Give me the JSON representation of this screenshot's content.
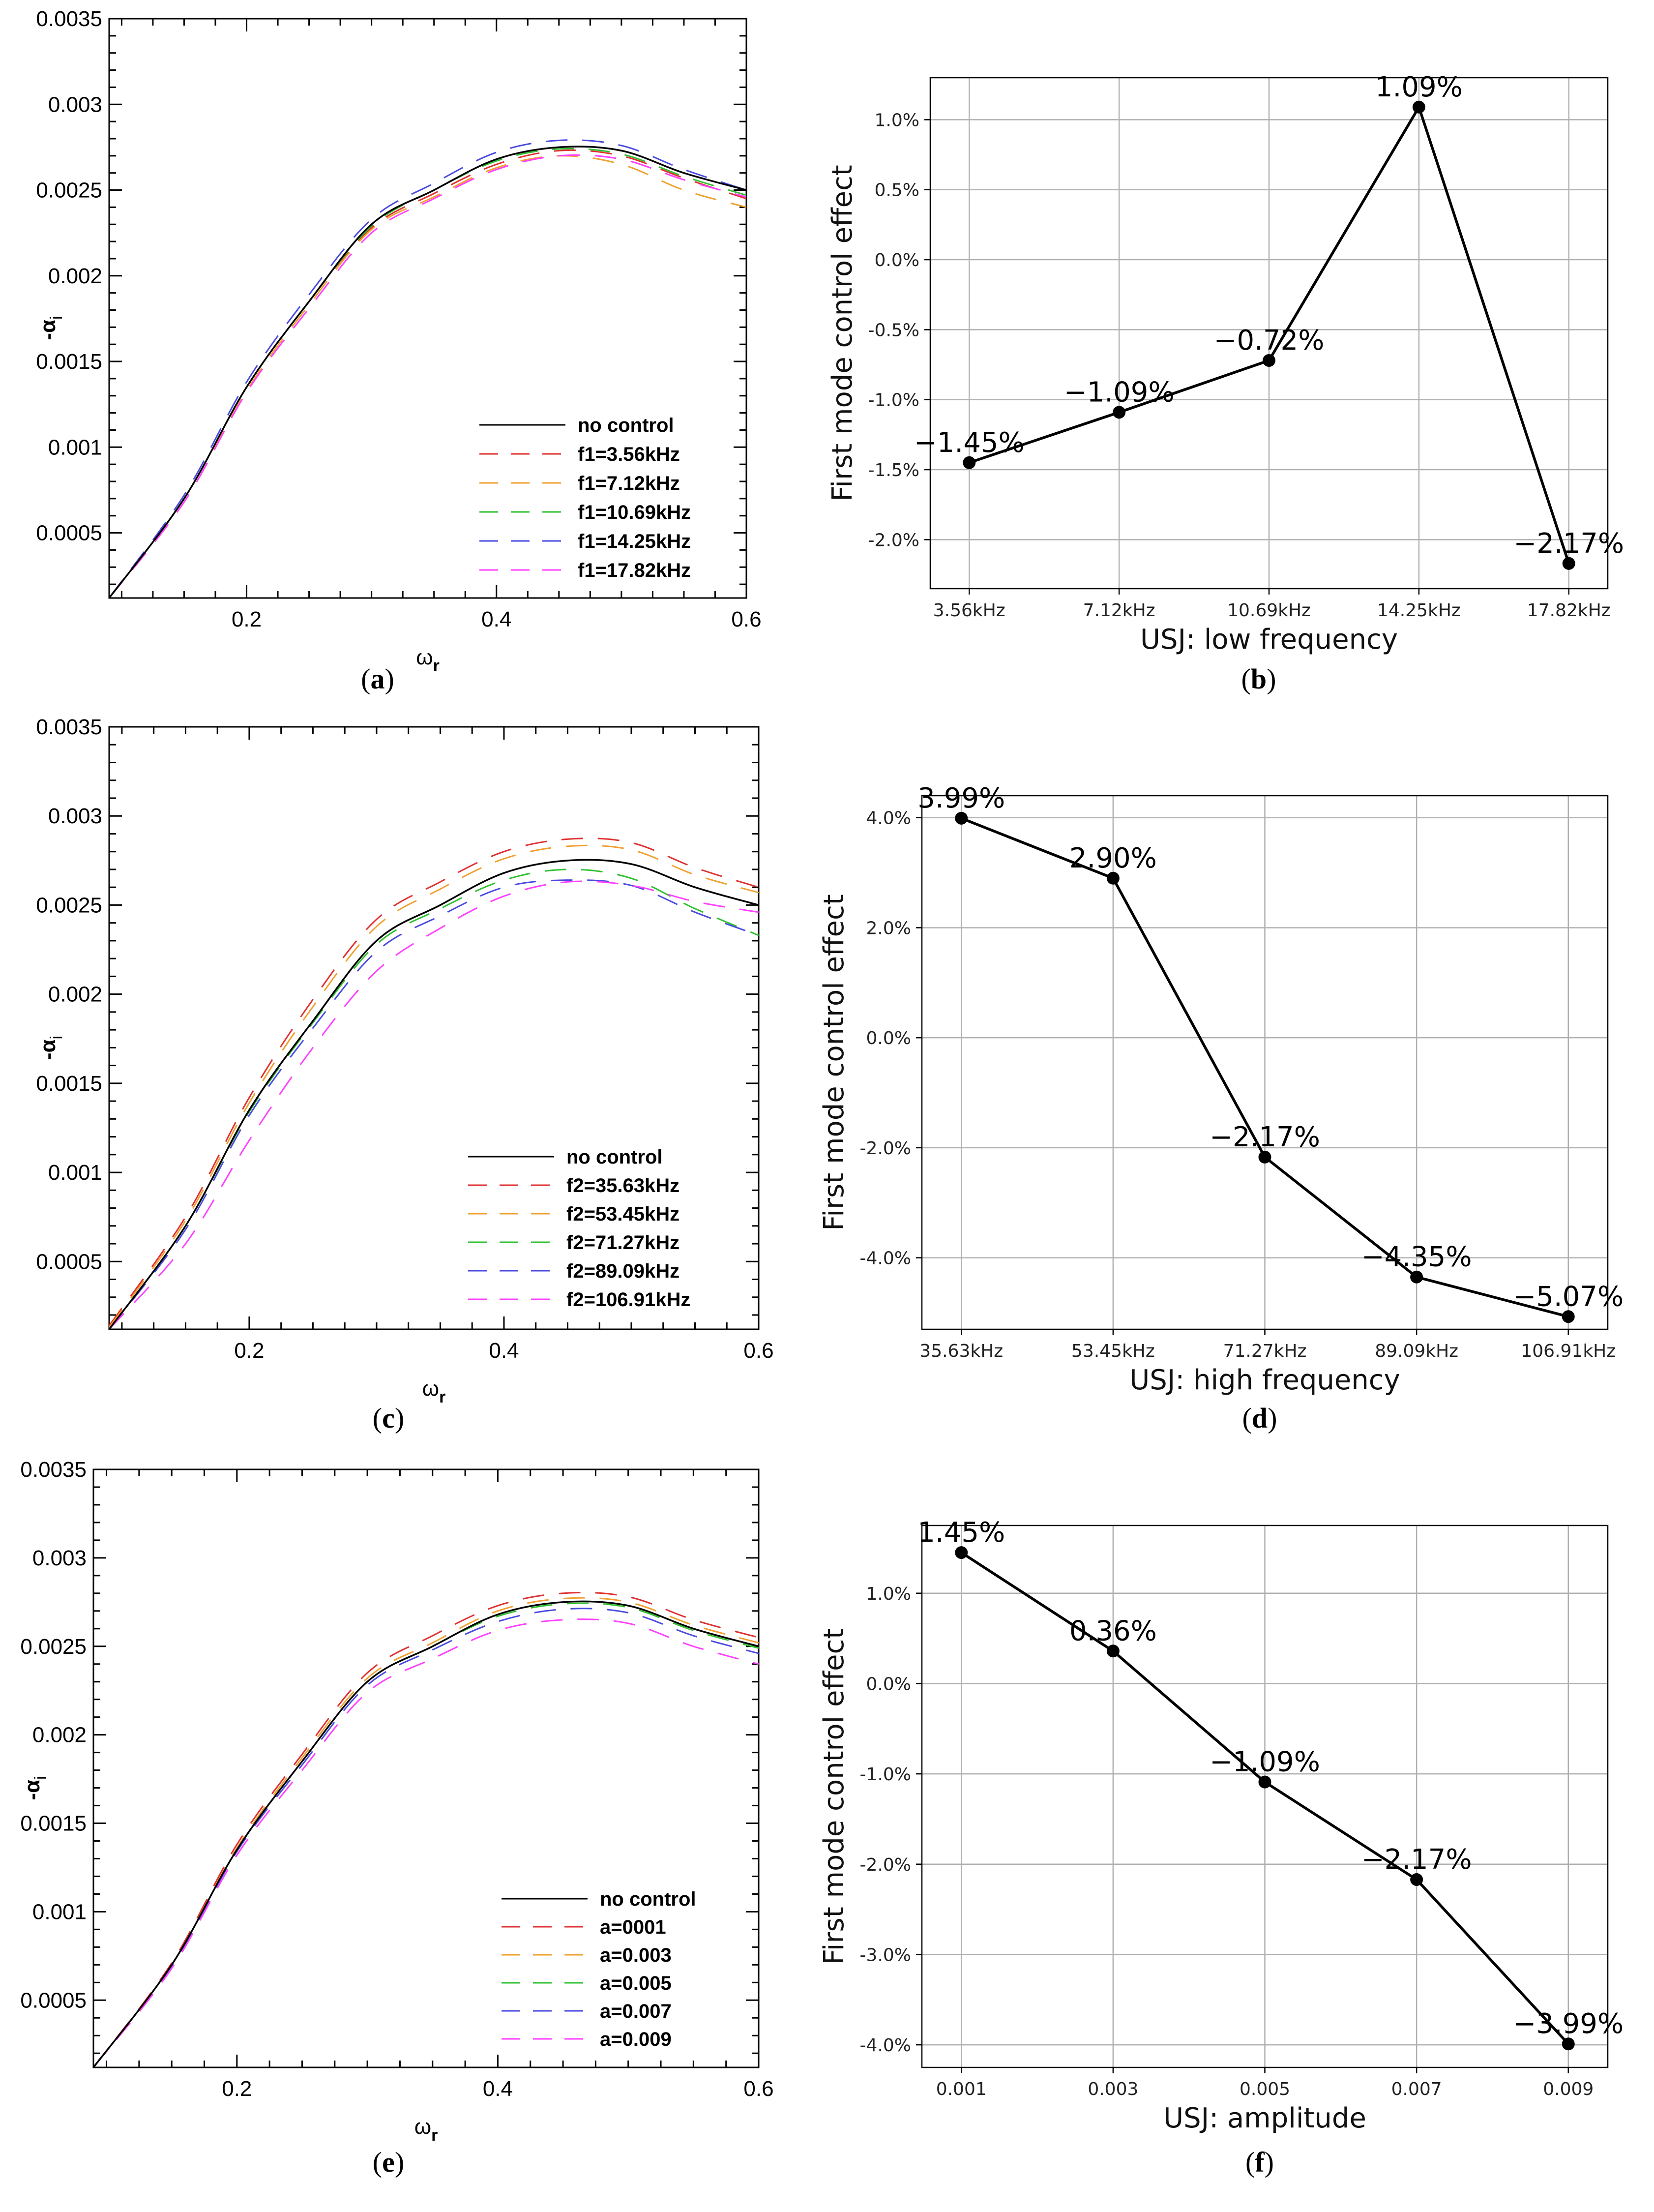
{
  "chart_data": [
    {
      "id": "a",
      "type": "line",
      "caption": "a",
      "xlabel": "ω",
      "xlabel_sub": "r",
      "ylabel": "-α",
      "ylabel_sub": "i",
      "xlim": [
        0.09,
        0.6
      ],
      "ylim": [
        0.00012,
        0.0035
      ],
      "xticks": [
        0.2,
        0.4,
        0.6
      ],
      "xtick_labels": [
        "0.2",
        "0.4",
        "0.6"
      ],
      "yticks": [
        0.0005,
        0.001,
        0.0015,
        0.002,
        0.0025,
        0.003,
        0.0035
      ],
      "ytick_labels": [
        "0.0005",
        "0.001",
        "0.0015",
        "0.002",
        "0.0025",
        "0.003",
        "0.0035"
      ],
      "legend_position": "bottom-right",
      "series": [
        {
          "name": "no control",
          "color": "#000000",
          "dash": "solid",
          "x": [
            0.09,
            0.15,
            0.2,
            0.25,
            0.3,
            0.35,
            0.4,
            0.45,
            0.5,
            0.55,
            0.6
          ],
          "y": [
            0.00012,
            0.0007,
            0.00135,
            0.00185,
            0.0023,
            0.0025,
            0.00268,
            0.00275,
            0.00273,
            0.0026,
            0.0025
          ]
        },
        {
          "name": "f1=3.56kHz",
          "color": "#e03030",
          "dash": "dashed",
          "x": [
            0.09,
            0.15,
            0.2,
            0.25,
            0.3,
            0.35,
            0.4,
            0.45,
            0.5,
            0.55,
            0.6
          ],
          "y": [
            0.00012,
            0.0007,
            0.00135,
            0.00185,
            0.00228,
            0.00248,
            0.00265,
            0.00273,
            0.0027,
            0.00257,
            0.00245
          ]
        },
        {
          "name": "f1=7.12kHz",
          "color": "#f0a030",
          "dash": "dashed",
          "x": [
            0.09,
            0.15,
            0.2,
            0.25,
            0.3,
            0.35,
            0.4,
            0.45,
            0.5,
            0.55,
            0.6
          ],
          "y": [
            0.00012,
            0.00068,
            0.00133,
            0.00183,
            0.00227,
            0.00246,
            0.00263,
            0.0027,
            0.00265,
            0.0025,
            0.0024
          ]
        },
        {
          "name": "f1=10.69kHz",
          "color": "#30c030",
          "dash": "dashed",
          "x": [
            0.09,
            0.15,
            0.2,
            0.25,
            0.3,
            0.35,
            0.4,
            0.45,
            0.5,
            0.55,
            0.6
          ],
          "y": [
            0.00012,
            0.0007,
            0.00135,
            0.00185,
            0.00229,
            0.0025,
            0.00267,
            0.00274,
            0.00271,
            0.00258,
            0.00247
          ]
        },
        {
          "name": "f1=14.25kHz",
          "color": "#4a4ae0",
          "dash": "dashed",
          "x": [
            0.09,
            0.15,
            0.2,
            0.25,
            0.3,
            0.35,
            0.4,
            0.45,
            0.5,
            0.55,
            0.6
          ],
          "y": [
            0.00012,
            0.00072,
            0.00138,
            0.00189,
            0.00233,
            0.00254,
            0.00272,
            0.00279,
            0.00276,
            0.00262,
            0.0025
          ]
        },
        {
          "name": "f1=17.82kHz",
          "color": "#ff40ff",
          "dash": "dashed",
          "x": [
            0.09,
            0.15,
            0.2,
            0.25,
            0.3,
            0.35,
            0.4,
            0.45,
            0.5,
            0.55,
            0.6
          ],
          "y": [
            0.00012,
            0.00068,
            0.00132,
            0.00181,
            0.00225,
            0.00245,
            0.00262,
            0.0027,
            0.00268,
            0.00256,
            0.00246
          ]
        }
      ]
    },
    {
      "id": "b",
      "type": "line",
      "caption": "b",
      "xlabel": "USJ: low frequency",
      "ylabel": "First mode control effect",
      "categories": [
        "3.56kHz",
        "7.12kHz",
        "10.69kHz",
        "14.25kHz",
        "17.82kHz"
      ],
      "values": [
        -1.45,
        -1.09,
        -0.72,
        1.09,
        -2.17
      ],
      "value_labels": [
        "−1.45%",
        "−1.09%",
        "−0.72%",
        "1.09%",
        "−2.17%"
      ],
      "ylim": [
        -2.35,
        1.3
      ],
      "yticks": [
        -2.0,
        -1.5,
        -1.0,
        -0.5,
        0.0,
        0.5,
        1.0
      ],
      "ytick_labels": [
        "-2.0%",
        "-1.5%",
        "-1.0%",
        "-0.5%",
        "0.0%",
        "0.5%",
        "1.0%"
      ],
      "grid": true
    },
    {
      "id": "c",
      "type": "line",
      "caption": "c",
      "xlabel": "ω",
      "xlabel_sub": "r",
      "ylabel": "-α",
      "ylabel_sub": "i",
      "xlim": [
        0.09,
        0.6
      ],
      "ylim": [
        0.00012,
        0.0035
      ],
      "xticks": [
        0.2,
        0.4,
        0.6
      ],
      "xtick_labels": [
        "0.2",
        "0.4",
        "0.6"
      ],
      "yticks": [
        0.0005,
        0.001,
        0.0015,
        0.002,
        0.0025,
        0.003,
        0.0035
      ],
      "ytick_labels": [
        "0.0005",
        "0.001",
        "0.0015",
        "0.002",
        "0.0025",
        "0.003",
        "0.0035"
      ],
      "legend_position": "bottom-right",
      "series": [
        {
          "name": "no control",
          "color": "#000000",
          "dash": "solid",
          "x": [
            0.09,
            0.15,
            0.2,
            0.25,
            0.3,
            0.35,
            0.4,
            0.45,
            0.5,
            0.55,
            0.6
          ],
          "y": [
            0.00012,
            0.0007,
            0.00135,
            0.00185,
            0.0023,
            0.0025,
            0.00268,
            0.00275,
            0.00273,
            0.0026,
            0.0025
          ]
        },
        {
          "name": "f2=35.63kHz",
          "color": "#e03030",
          "dash": "dashed",
          "x": [
            0.09,
            0.15,
            0.2,
            0.25,
            0.3,
            0.35,
            0.4,
            0.45,
            0.5,
            0.55,
            0.6
          ],
          "y": [
            0.00014,
            0.00075,
            0.00142,
            0.00197,
            0.00242,
            0.00263,
            0.0028,
            0.00287,
            0.00285,
            0.00271,
            0.0026
          ]
        },
        {
          "name": "f2=53.45kHz",
          "color": "#f0a030",
          "dash": "dashed",
          "x": [
            0.09,
            0.15,
            0.2,
            0.25,
            0.3,
            0.35,
            0.4,
            0.45,
            0.5,
            0.55,
            0.6
          ],
          "y": [
            0.00013,
            0.00073,
            0.00139,
            0.00193,
            0.00238,
            0.00259,
            0.00276,
            0.00283,
            0.00281,
            0.00267,
            0.00257
          ]
        },
        {
          "name": "f2=71.27kHz",
          "color": "#30c030",
          "dash": "dashed",
          "x": [
            0.09,
            0.15,
            0.2,
            0.25,
            0.3,
            0.35,
            0.4,
            0.45,
            0.5,
            0.55,
            0.6
          ],
          "y": [
            0.00012,
            0.0007,
            0.00134,
            0.00184,
            0.00228,
            0.00248,
            0.00264,
            0.0027,
            0.00265,
            0.00248,
            0.00233
          ]
        },
        {
          "name": "f2=89.09kHz",
          "color": "#4a4ae0",
          "dash": "dashed",
          "x": [
            0.09,
            0.15,
            0.2,
            0.25,
            0.3,
            0.35,
            0.4,
            0.45,
            0.5,
            0.55,
            0.6
          ],
          "y": [
            0.00012,
            0.00068,
            0.00132,
            0.00181,
            0.00224,
            0.00244,
            0.0026,
            0.00264,
            0.00261,
            0.00246,
            0.00233
          ]
        },
        {
          "name": "f2=106.91kHz",
          "color": "#ff40ff",
          "dash": "dashed",
          "x": [
            0.09,
            0.15,
            0.2,
            0.25,
            0.3,
            0.35,
            0.4,
            0.45,
            0.5,
            0.55,
            0.6
          ],
          "y": [
            0.00012,
            0.0006,
            0.00118,
            0.0017,
            0.00213,
            0.00237,
            0.00255,
            0.00263,
            0.00261,
            0.00252,
            0.00246
          ]
        }
      ]
    },
    {
      "id": "d",
      "type": "line",
      "caption": "d",
      "xlabel": "USJ: high frequency",
      "ylabel": "First mode control effect",
      "categories": [
        "35.63kHz",
        "53.45kHz",
        "71.27kHz",
        "89.09kHz",
        "106.91kHz"
      ],
      "values": [
        3.99,
        2.9,
        -2.17,
        -4.35,
        -5.07
      ],
      "value_labels": [
        "3.99%",
        "2.90%",
        "−2.17%",
        "−4.35%",
        "−5.07%"
      ],
      "ylim": [
        -5.3,
        4.4
      ],
      "yticks": [
        -4.0,
        -2.0,
        0.0,
        2.0,
        4.0
      ],
      "ytick_labels": [
        "-4.0%",
        "-2.0%",
        "0.0%",
        "2.0%",
        "4.0%"
      ],
      "grid": true
    },
    {
      "id": "e",
      "type": "line",
      "caption": "e",
      "xlabel": "ω",
      "xlabel_sub": "r",
      "ylabel": "-α",
      "ylabel_sub": "i",
      "xlim": [
        0.09,
        0.6
      ],
      "ylim": [
        0.00012,
        0.0035
      ],
      "xticks": [
        0.2,
        0.4,
        0.6
      ],
      "xtick_labels": [
        "0.2",
        "0.4",
        "0.6"
      ],
      "yticks": [
        0.0005,
        0.001,
        0.0015,
        0.002,
        0.0025,
        0.003,
        0.0035
      ],
      "ytick_labels": [
        "0.0005",
        "0.001",
        "0.0015",
        "0.002",
        "0.0025",
        "0.003",
        "0.0035"
      ],
      "legend_position": "bottom-right",
      "series": [
        {
          "name": "no control",
          "color": "#000000",
          "dash": "solid",
          "x": [
            0.09,
            0.15,
            0.2,
            0.25,
            0.3,
            0.35,
            0.4,
            0.45,
            0.5,
            0.55,
            0.6
          ],
          "y": [
            0.00012,
            0.0007,
            0.00135,
            0.00185,
            0.0023,
            0.0025,
            0.00268,
            0.00275,
            0.00273,
            0.0026,
            0.0025
          ]
        },
        {
          "name": "a=0001",
          "color": "#e03030",
          "dash": "dashed",
          "x": [
            0.09,
            0.15,
            0.2,
            0.25,
            0.3,
            0.35,
            0.4,
            0.45,
            0.5,
            0.55,
            0.6
          ],
          "y": [
            0.00012,
            0.00071,
            0.00138,
            0.00189,
            0.00235,
            0.00256,
            0.00273,
            0.0028,
            0.00278,
            0.00265,
            0.00255
          ]
        },
        {
          "name": "a=0.003",
          "color": "#f0a030",
          "dash": "dashed",
          "x": [
            0.09,
            0.15,
            0.2,
            0.25,
            0.3,
            0.35,
            0.4,
            0.45,
            0.5,
            0.55,
            0.6
          ],
          "y": [
            0.00012,
            0.0007,
            0.00136,
            0.00187,
            0.00232,
            0.00252,
            0.0027,
            0.00277,
            0.00275,
            0.00262,
            0.00252
          ]
        },
        {
          "name": "a=0.005",
          "color": "#30c030",
          "dash": "dashed",
          "x": [
            0.09,
            0.15,
            0.2,
            0.25,
            0.3,
            0.35,
            0.4,
            0.45,
            0.5,
            0.55,
            0.6
          ],
          "y": [
            0.00012,
            0.0007,
            0.00135,
            0.00185,
            0.0023,
            0.0025,
            0.00267,
            0.00274,
            0.00272,
            0.00259,
            0.00249
          ]
        },
        {
          "name": "a=0.007",
          "color": "#4a4ae0",
          "dash": "dashed",
          "x": [
            0.09,
            0.15,
            0.2,
            0.25,
            0.3,
            0.35,
            0.4,
            0.45,
            0.5,
            0.55,
            0.6
          ],
          "y": [
            0.00012,
            0.00069,
            0.00134,
            0.00183,
            0.00228,
            0.00248,
            0.00264,
            0.00271,
            0.00269,
            0.00256,
            0.00246
          ]
        },
        {
          "name": "a=0.009",
          "color": "#ff40ff",
          "dash": "dashed",
          "x": [
            0.09,
            0.15,
            0.2,
            0.25,
            0.3,
            0.35,
            0.4,
            0.45,
            0.5,
            0.55,
            0.6
          ],
          "y": [
            0.00012,
            0.00068,
            0.00132,
            0.0018,
            0.00224,
            0.00243,
            0.00259,
            0.00265,
            0.00263,
            0.0025,
            0.0024
          ]
        }
      ]
    },
    {
      "id": "f",
      "type": "line",
      "caption": "f",
      "xlabel": "USJ: amplitude",
      "ylabel": "First mode control effect",
      "categories": [
        "0.001",
        "0.003",
        "0.005",
        "0.007",
        "0.009"
      ],
      "values": [
        1.45,
        0.36,
        -1.09,
        -2.17,
        -3.99
      ],
      "value_labels": [
        "1.45%",
        "0.36%",
        "−1.09%",
        "−2.17%",
        "−3.99%"
      ],
      "ylim": [
        -4.25,
        1.75
      ],
      "yticks": [
        -4.0,
        -3.0,
        -2.0,
        -1.0,
        0.0,
        1.0
      ],
      "ytick_labels": [
        "-4.0%",
        "-3.0%",
        "-2.0%",
        "-1.0%",
        "0.0%",
        "1.0%"
      ],
      "grid": true
    }
  ]
}
